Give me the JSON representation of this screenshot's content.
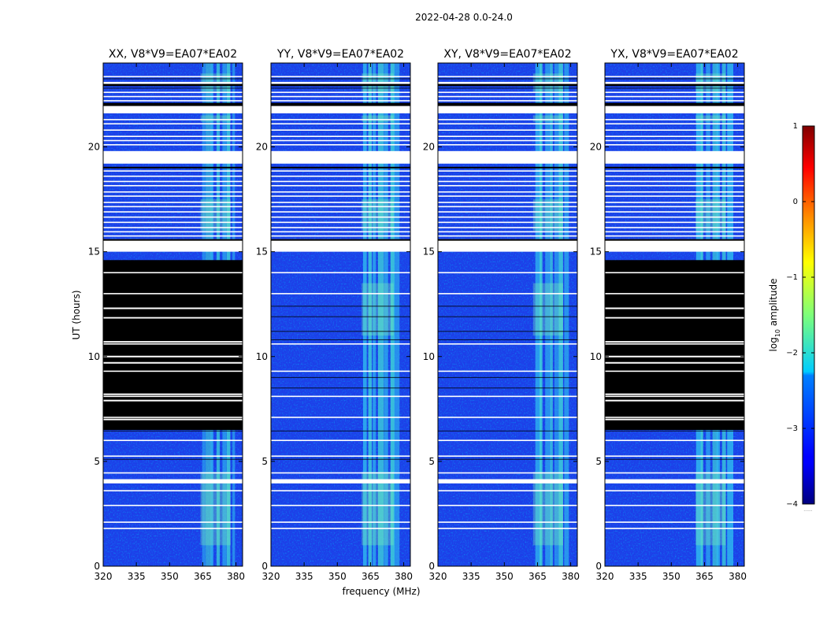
{
  "figure": {
    "suptitle": "2022-04-28 0.0-24.0",
    "xlabel": "frequency (MHz)",
    "ylabel": "UT (hours)"
  },
  "colorbar": {
    "label_main": "log",
    "label_sub": "10",
    "label_rest": " amplitude",
    "ticks": [
      1,
      0,
      -1,
      -2,
      -3,
      -4
    ],
    "range": [
      -4,
      1
    ],
    "footnote": "......"
  },
  "chart_data": {
    "type": "heatmap",
    "title": "2022-04-28 0.0-24.0",
    "xlabel": "frequency (MHz)",
    "ylabel": "UT (hours)",
    "xlim": [
      320,
      383
    ],
    "ylim": [
      0,
      24
    ],
    "xticks": [
      320,
      335,
      350,
      365,
      380
    ],
    "yticks": [
      0,
      5,
      10,
      15,
      20
    ],
    "color_scale": {
      "label": "log10 amplitude",
      "min": -4,
      "max": 1
    },
    "panels": [
      {
        "title": "XX, V8*V9=EA07*EA02",
        "bright_band_mhz": [
          364,
          380
        ],
        "fully_flagged_hours": [
          [
            6.5,
            14.6
          ]
        ]
      },
      {
        "title": "YY, V8*V9=EA07*EA02",
        "bright_band_mhz": [
          361,
          378
        ],
        "fully_flagged_hours": []
      },
      {
        "title": "XY, V8*V9=EA07*EA02",
        "bright_band_mhz": [
          363,
          379
        ],
        "fully_flagged_hours": []
      },
      {
        "title": "YX, V8*V9=EA07*EA02",
        "bright_band_mhz": [
          361,
          377
        ],
        "fully_flagged_hours": [
          [
            6.5,
            14.6
          ]
        ]
      }
    ],
    "flagged_gap_hours": [
      [
        15.0,
        15.6
      ],
      [
        19.2,
        19.8
      ],
      [
        21.6,
        22.0
      ],
      [
        23.0,
        23.1
      ]
    ]
  }
}
